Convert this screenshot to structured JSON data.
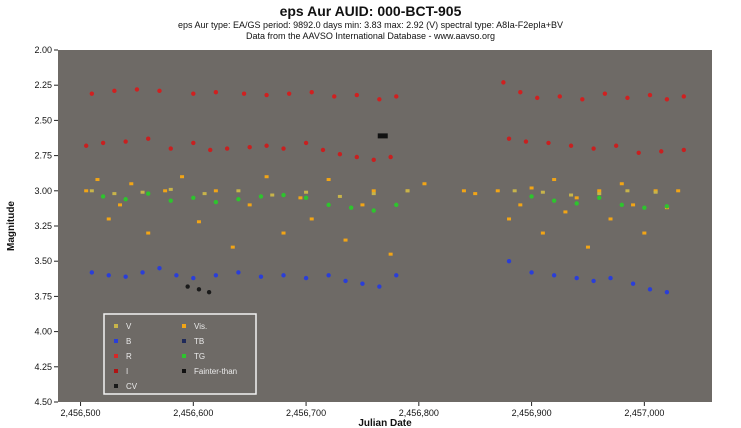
{
  "header": {
    "title": "eps Aur    AUID: 000-BCT-905",
    "subtitle": "eps Aur   type: EA/GS   period: 9892.0 days   min: 3.83   max: 2.92 (V)   spectral type: A8Ia-F2epIa+BV",
    "source": "Data from the AAVSO International Database - www.aavso.org"
  },
  "chart_data": {
    "type": "scatter",
    "xlabel": "Julian Date",
    "ylabel": "Magnitude",
    "xlim": [
      2456480,
      2457060
    ],
    "ylim": [
      4.5,
      2.0
    ],
    "y_inverted": true,
    "xticks": [
      2456500,
      2456600,
      2456700,
      2456800,
      2456900,
      2457000
    ],
    "xtick_labels": [
      "2,456,500",
      "2,456,600",
      "2,456,700",
      "2,456,800",
      "2,456,900",
      "2,457,000"
    ],
    "yticks": [
      2.0,
      2.25,
      2.5,
      2.75,
      3.0,
      3.25,
      3.5,
      3.75,
      4.0,
      4.25,
      4.5
    ],
    "ytick_labels": [
      "2.00",
      "2.25",
      "2.50",
      "2.75",
      "3.00",
      "3.25",
      "3.50",
      "3.75",
      "4.00",
      "4.25",
      "4.50"
    ],
    "grid": false,
    "background": "#6e6a66",
    "legend_position": "bottom-left",
    "legend": [
      {
        "label": "V",
        "color": "#c8b44a"
      },
      {
        "label": "Vis.",
        "color": "#f2a516"
      },
      {
        "label": "B",
        "color": "#2a3ed8"
      },
      {
        "label": "TB",
        "color": "#1f2a5a"
      },
      {
        "label": "R",
        "color": "#d62828"
      },
      {
        "label": "TG",
        "color": "#2ec42e"
      },
      {
        "label": "I",
        "color": "#b01414"
      },
      {
        "label": "Fainter-than",
        "color": "#111111"
      },
      {
        "label": "CV",
        "color": "#1a1a1a"
      }
    ],
    "series": [
      {
        "name": "I",
        "color": "#d02020",
        "x": [
          2456510,
          2456530,
          2456550,
          2456570,
          2456600,
          2456620,
          2456645,
          2456665,
          2456685,
          2456705,
          2456725,
          2456745,
          2456765,
          2456780,
          2456875,
          2456890,
          2456905,
          2456925,
          2456945,
          2456965,
          2456985,
          2457005,
          2457020,
          2457035
        ],
        "y": [
          2.31,
          2.29,
          2.28,
          2.29,
          2.31,
          2.3,
          2.31,
          2.32,
          2.31,
          2.3,
          2.33,
          2.32,
          2.35,
          2.33,
          2.23,
          2.3,
          2.34,
          2.33,
          2.35,
          2.31,
          2.34,
          2.32,
          2.35,
          2.33
        ]
      },
      {
        "name": "R",
        "color": "#c82020",
        "x": [
          2456505,
          2456520,
          2456540,
          2456560,
          2456580,
          2456600,
          2456615,
          2456630,
          2456650,
          2456665,
          2456680,
          2456700,
          2456715,
          2456730,
          2456745,
          2456760,
          2456775,
          2456880,
          2456895,
          2456915,
          2456935,
          2456955,
          2456975,
          2456995,
          2457015,
          2457035
        ],
        "y": [
          2.68,
          2.66,
          2.65,
          2.63,
          2.7,
          2.66,
          2.71,
          2.7,
          2.69,
          2.68,
          2.7,
          2.66,
          2.71,
          2.74,
          2.76,
          2.78,
          2.76,
          2.63,
          2.65,
          2.66,
          2.68,
          2.7,
          2.68,
          2.73,
          2.72,
          2.71
        ]
      },
      {
        "name": "Vis.",
        "color": "#f2a516",
        "x": [
          2456505,
          2456515,
          2456525,
          2456535,
          2456545,
          2456560,
          2456575,
          2456590,
          2456605,
          2456620,
          2456635,
          2456650,
          2456665,
          2456680,
          2456695,
          2456705,
          2456720,
          2456735,
          2456750,
          2456760,
          2456775,
          2456790,
          2456805,
          2456840,
          2456850,
          2456870,
          2456880,
          2456890,
          2456900,
          2456910,
          2456920,
          2456930,
          2456940,
          2456950,
          2456960,
          2456970,
          2456980,
          2456990,
          2457000,
          2457010,
          2457020,
          2457030
        ],
        "y": [
          3.0,
          2.92,
          3.2,
          3.1,
          2.95,
          3.3,
          3.0,
          2.9,
          3.22,
          3.0,
          3.4,
          3.1,
          2.9,
          3.3,
          3.05,
          3.2,
          2.92,
          3.35,
          3.1,
          3.0,
          3.45,
          3.0,
          2.95,
          3.0,
          3.02,
          3.0,
          3.2,
          3.1,
          2.98,
          3.3,
          2.92,
          3.15,
          3.05,
          3.4,
          3.0,
          3.2,
          2.95,
          3.1,
          3.3,
          3.0,
          3.12,
          3.0
        ]
      },
      {
        "name": "V",
        "color": "#c8b44a",
        "x": [
          2456510,
          2456530,
          2456555,
          2456580,
          2456610,
          2456640,
          2456670,
          2456700,
          2456730,
          2456760,
          2456790,
          2456885,
          2456910,
          2456935,
          2456960,
          2456985,
          2457010
        ],
        "y": [
          3.0,
          3.02,
          3.01,
          2.99,
          3.02,
          3.0,
          3.03,
          3.01,
          3.04,
          3.02,
          3.0,
          3.0,
          3.01,
          3.03,
          3.02,
          3.0,
          3.01
        ]
      },
      {
        "name": "TG",
        "color": "#2ec42e",
        "x": [
          2456520,
          2456540,
          2456560,
          2456580,
          2456600,
          2456620,
          2456640,
          2456660,
          2456680,
          2456700,
          2456720,
          2456740,
          2456760,
          2456780,
          2456900,
          2456920,
          2456940,
          2456960,
          2456980,
          2457000,
          2457020
        ],
        "y": [
          3.04,
          3.06,
          3.02,
          3.07,
          3.05,
          3.08,
          3.06,
          3.04,
          3.03,
          3.05,
          3.1,
          3.12,
          3.14,
          3.1,
          3.04,
          3.07,
          3.09,
          3.05,
          3.1,
          3.12,
          3.11
        ]
      },
      {
        "name": "B",
        "color": "#2a3ed8",
        "x": [
          2456510,
          2456525,
          2456540,
          2456555,
          2456570,
          2456585,
          2456600,
          2456620,
          2456640,
          2456660,
          2456680,
          2456700,
          2456720,
          2456735,
          2456750,
          2456765,
          2456780,
          2456880,
          2456900,
          2456920,
          2456940,
          2456955,
          2456970,
          2456990,
          2457005,
          2457020
        ],
        "y": [
          3.58,
          3.6,
          3.61,
          3.58,
          3.55,
          3.6,
          3.62,
          3.6,
          3.58,
          3.61,
          3.6,
          3.62,
          3.6,
          3.64,
          3.66,
          3.68,
          3.6,
          3.5,
          3.58,
          3.6,
          3.62,
          3.64,
          3.62,
          3.66,
          3.7,
          3.72
        ]
      },
      {
        "name": "CV",
        "color": "#1a1a1a",
        "x": [
          2456595,
          2456605,
          2456614
        ],
        "y": [
          3.68,
          3.7,
          3.72
        ]
      },
      {
        "name": "Fainter-than",
        "color": "#111111",
        "x": [
          2456768
        ],
        "y": [
          2.61
        ]
      }
    ]
  }
}
